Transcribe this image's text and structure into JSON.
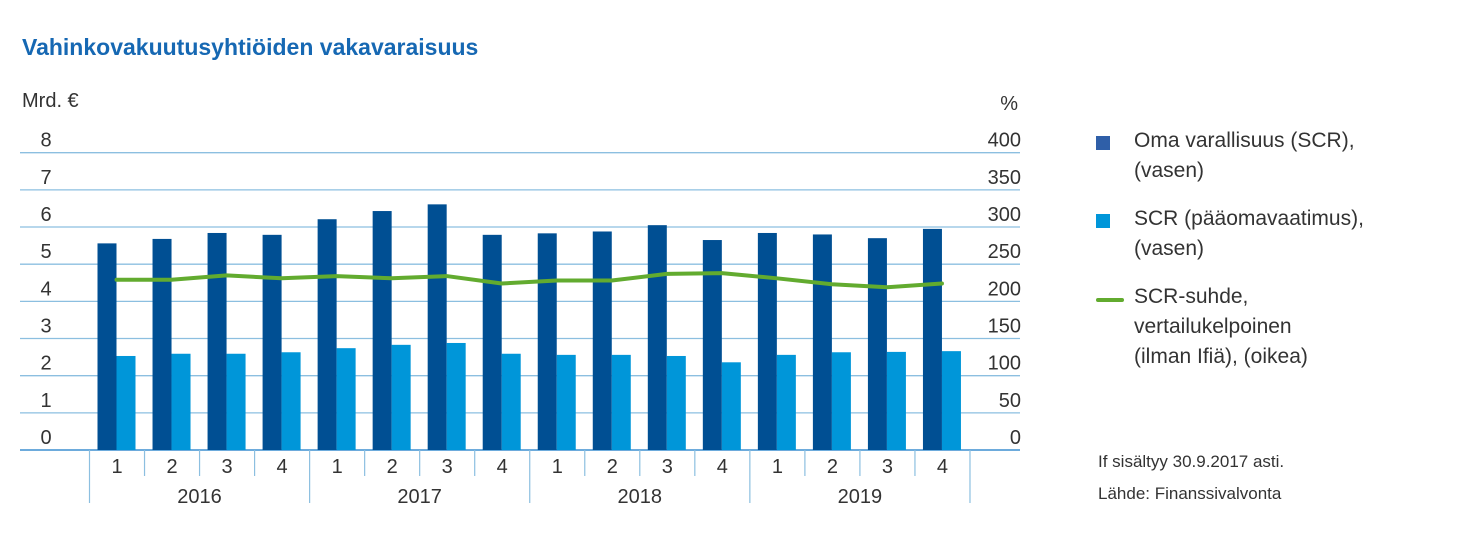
{
  "chart_data": {
    "type": "bar",
    "title": "Vahinkovakuutusyhtiöiden vakavaraisuus",
    "ylabel_left": "Mrd. €",
    "ylabel_right": "%",
    "ylim_left": [
      0,
      8
    ],
    "ylim_right": [
      0,
      400
    ],
    "yticks_left": [
      "0",
      "1",
      "2",
      "3",
      "4",
      "5",
      "6",
      "7",
      "8"
    ],
    "yticks_right": [
      "0",
      "50",
      "100",
      "150",
      "200",
      "250",
      "300",
      "350",
      "400"
    ],
    "grid": true,
    "legend_position": "right",
    "categories": [
      "1",
      "2",
      "3",
      "4",
      "1",
      "2",
      "3",
      "4",
      "1",
      "2",
      "3",
      "4",
      "1",
      "2",
      "3",
      "4"
    ],
    "years": [
      "2016",
      "2017",
      "2018",
      "2019"
    ],
    "series": [
      {
        "name": "Oma varallisuus (SCR), (vasen)",
        "type": "bar",
        "axis": "left",
        "color": "#004f93",
        "values": [
          5.56,
          5.68,
          5.84,
          5.79,
          6.21,
          6.43,
          6.61,
          5.79,
          5.83,
          5.88,
          6.05,
          5.65,
          5.84,
          5.8,
          5.7,
          5.95
        ]
      },
      {
        "name": "SCR (pääomavaatimus), (vasen)",
        "type": "bar",
        "axis": "left",
        "color": "#0096d9",
        "values": [
          2.53,
          2.59,
          2.59,
          2.63,
          2.74,
          2.83,
          2.88,
          2.59,
          2.56,
          2.56,
          2.53,
          2.36,
          2.56,
          2.63,
          2.64,
          2.66
        ]
      },
      {
        "name": "SCR-suhde, vertailukelpoinen (ilman Ifiä), (oikea)",
        "type": "line",
        "axis": "right",
        "color": "#62ab2f",
        "values": [
          229,
          229,
          235,
          231,
          234,
          231,
          234,
          224,
          228,
          228,
          237,
          238,
          231,
          223,
          219,
          224
        ]
      }
    ],
    "legend_lines": [
      [
        "Oma varallisuus (SCR),",
        "(vasen)"
      ],
      [
        "SCR (pääomavaatimus),",
        "(vasen)"
      ],
      [
        "SCR-suhde,",
        "vertailukelpoinen",
        "(ilman Ifiä), (oikea)"
      ]
    ],
    "notes": [
      "If sisältyy 30.9.2017 asti.",
      "Lähde: Finanssivalvonta"
    ]
  }
}
